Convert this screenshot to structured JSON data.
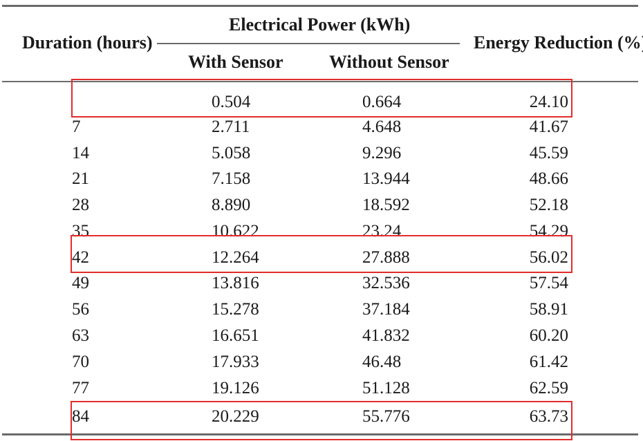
{
  "table": {
    "headers": {
      "duration": "Duration (hours)",
      "power_group": "Electrical Power (kWh)",
      "with_sensor": "With Sensor",
      "without_sensor": "Without Sensor",
      "energy_reduction": "Energy Reduction (%)"
    },
    "rows": [
      {
        "duration": "",
        "with": "0.504",
        "without": "0.664",
        "reduction": "24.10"
      },
      {
        "duration": "7",
        "with": "2.711",
        "without": "4.648",
        "reduction": "41.67"
      },
      {
        "duration": "14",
        "with": "5.058",
        "without": "9.296",
        "reduction": "45.59"
      },
      {
        "duration": "21",
        "with": "7.158",
        "without": "13.944",
        "reduction": "48.66"
      },
      {
        "duration": "28",
        "with": "8.890",
        "without": "18.592",
        "reduction": "52.18"
      },
      {
        "duration": "35",
        "with": "10.622",
        "without": "23.24",
        "reduction": "54.29"
      },
      {
        "duration": "42",
        "with": "12.264",
        "without": "27.888",
        "reduction": "56.02"
      },
      {
        "duration": "49",
        "with": "13.816",
        "without": "32.536",
        "reduction": "57.54"
      },
      {
        "duration": "56",
        "with": "15.278",
        "without": "37.184",
        "reduction": "58.91"
      },
      {
        "duration": "63",
        "with": "16.651",
        "without": "41.832",
        "reduction": "60.20"
      },
      {
        "duration": "70",
        "with": "17.933",
        "without": "46.48",
        "reduction": "61.42"
      },
      {
        "duration": "77",
        "with": "19.126",
        "without": "51.128",
        "reduction": "62.59"
      },
      {
        "duration": "84",
        "with": "20.229",
        "without": "55.776",
        "reduction": "63.73"
      }
    ]
  },
  "colors": {
    "highlight_border": "#e32b2b",
    "rule": "#6a6a6a",
    "text": "#1a1a1a"
  }
}
